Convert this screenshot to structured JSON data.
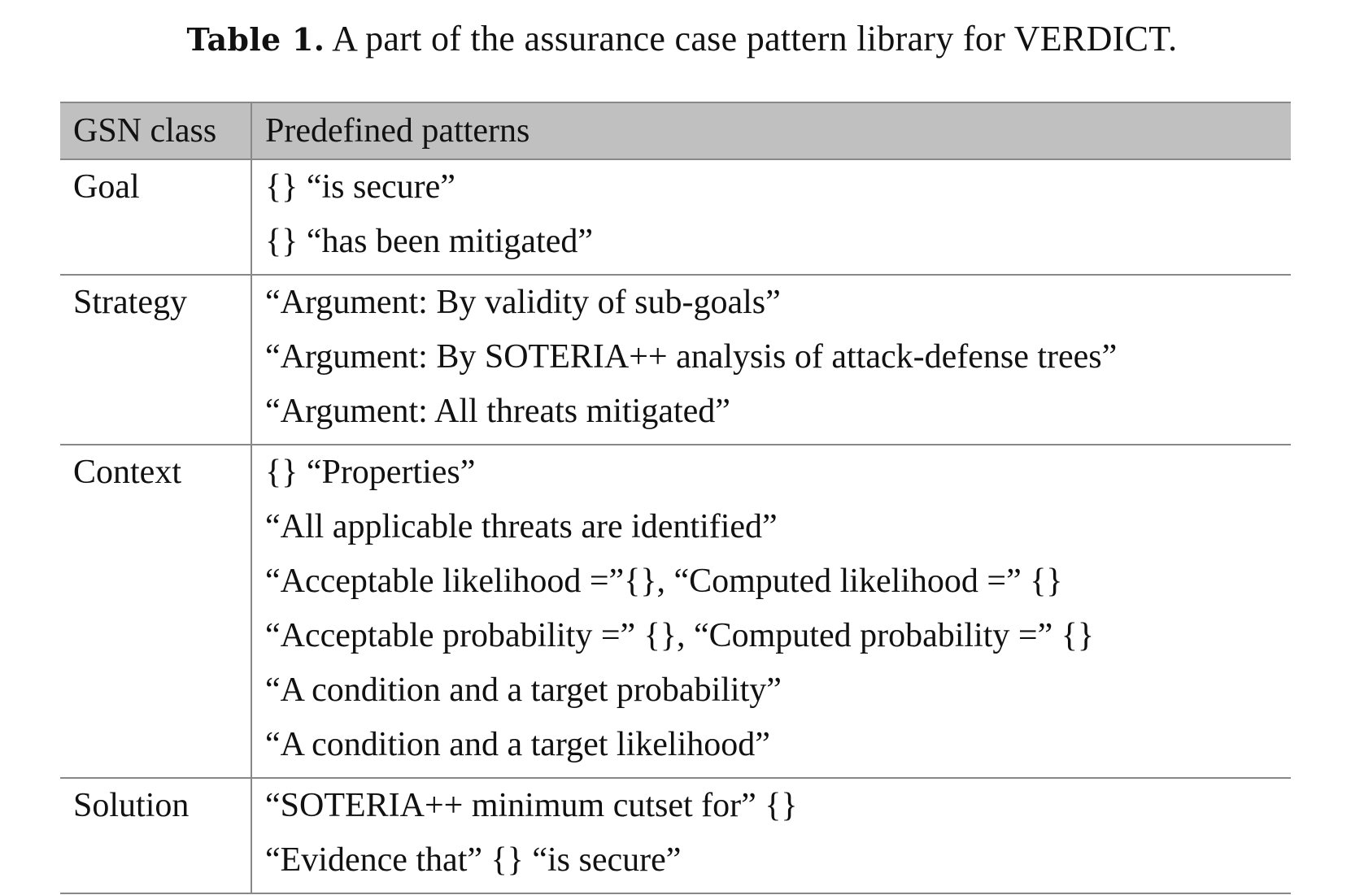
{
  "caption": {
    "label": "Table 1.",
    "text": "A part of the assurance case pattern library for VERDICT."
  },
  "table": {
    "headers": [
      "GSN class",
      "Predefined patterns"
    ],
    "rows": [
      {
        "gsn_class": "Goal",
        "patterns": [
          "{} “is secure”",
          "{} “has been mitigated”"
        ]
      },
      {
        "gsn_class": "Strategy",
        "patterns": [
          "“Argument: By validity of sub-goals”",
          "“Argument: By SOTERIA++ analysis of attack-defense trees”",
          "“Argument: All threats mitigated”"
        ]
      },
      {
        "gsn_class": "Context",
        "patterns": [
          "{} “Properties”",
          "“All applicable threats are identified”",
          "“Acceptable likelihood =”{}, “Computed likelihood =” {}",
          "“Acceptable probability =” {}, “Computed probability =” {}",
          "“A condition and a target probability”",
          "“A condition and a target likelihood”"
        ]
      },
      {
        "gsn_class": "Solution",
        "patterns": [
          "“SOTERIA++ minimum cutset for” {}",
          "“Evidence that” {} “is secure”"
        ]
      }
    ]
  }
}
